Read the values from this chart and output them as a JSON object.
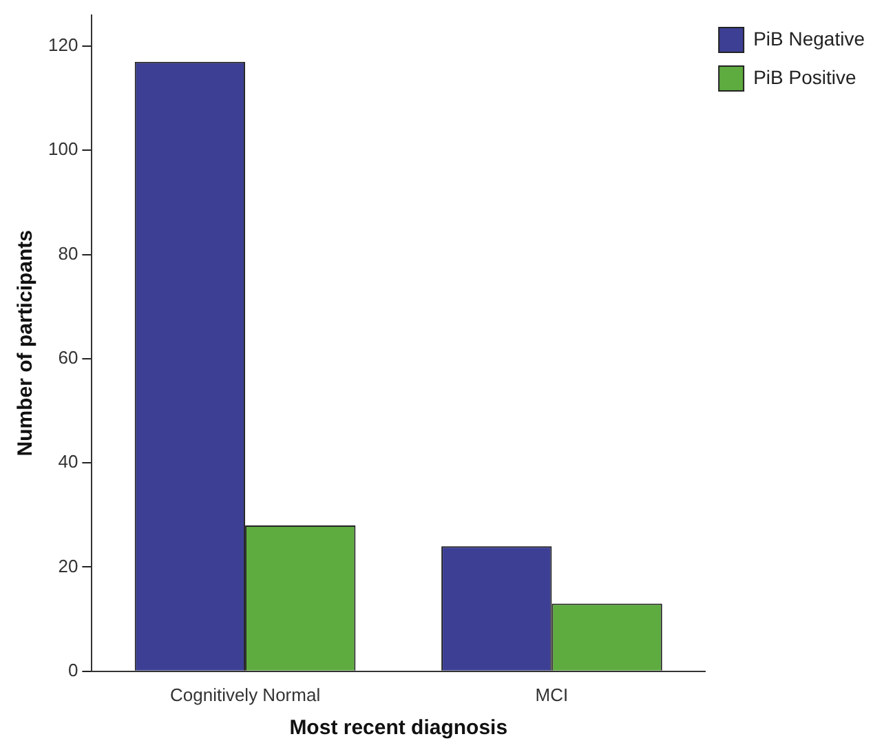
{
  "chart_data": {
    "type": "bar",
    "xlabel": "Most recent diagnosis",
    "ylabel": "Number of participants",
    "categories": [
      "Cognitively Normal",
      "MCI"
    ],
    "series": [
      {
        "name": "PiB Negative",
        "color": "#3c3f94",
        "values": [
          117,
          24
        ]
      },
      {
        "name": "PiB Positive",
        "color": "#5eab3f",
        "values": [
          28,
          13
        ]
      }
    ],
    "ylim": [
      0,
      126
    ],
    "yticks": [
      0,
      20,
      40,
      60,
      80,
      100,
      120
    ],
    "grid": false,
    "legend": "top right"
  }
}
